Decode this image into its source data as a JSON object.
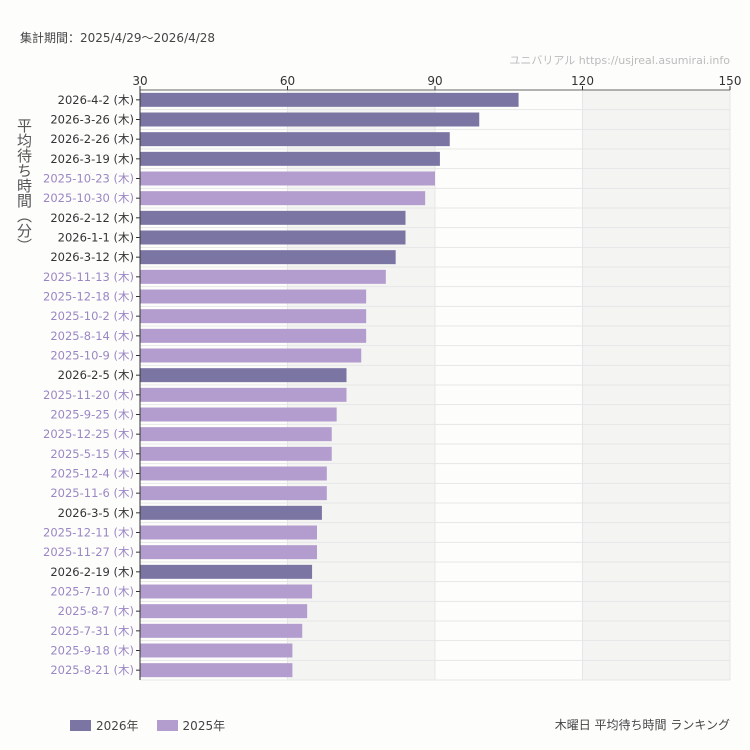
{
  "header": {
    "period": "集計期間：2025/4/29〜2026/4/28",
    "credit": "ユニバリアル  https://usjreal.asumirai.info"
  },
  "chart_data": {
    "type": "bar",
    "orientation": "horizontal",
    "title": "木曜日 平均待ち時間 ランキング",
    "ylabel": "平均待ち時間（分）",
    "xlim": [
      30,
      150
    ],
    "xticks": [
      "30",
      "60",
      "90",
      "120",
      "150"
    ],
    "grid": true,
    "legend_position": "bottom-left",
    "colors": {
      "2026年": "#7b75a3",
      "2025年": "#b39dce"
    },
    "legend": [
      {
        "name": "2026年",
        "color": "#7b75a3"
      },
      {
        "name": "2025年",
        "color": "#b39dce"
      }
    ],
    "categories": [
      "2026-4-2 (木)",
      "2026-3-26 (木)",
      "2026-2-26 (木)",
      "2026-3-19 (木)",
      "2025-10-23 (木)",
      "2025-10-30 (木)",
      "2026-2-12 (木)",
      "2026-1-1 (木)",
      "2026-3-12 (木)",
      "2025-11-13 (木)",
      "2025-12-18 (木)",
      "2025-10-2 (木)",
      "2025-8-14 (木)",
      "2025-10-9 (木)",
      "2026-2-5 (木)",
      "2025-11-20 (木)",
      "2025-9-25 (木)",
      "2025-12-25 (木)",
      "2025-5-15 (木)",
      "2025-12-4 (木)",
      "2025-11-6 (木)",
      "2026-3-5 (木)",
      "2025-12-11 (木)",
      "2025-11-27 (木)",
      "2026-2-19 (木)",
      "2025-7-10 (木)",
      "2025-8-7 (木)",
      "2025-7-31 (木)",
      "2025-9-18 (木)",
      "2025-8-21 (木)"
    ],
    "values": [
      107,
      99,
      93,
      91,
      90,
      88,
      84,
      84,
      82,
      80,
      76,
      76,
      76,
      75,
      72,
      72,
      70,
      69,
      69,
      68,
      68,
      67,
      66,
      66,
      65,
      65,
      64,
      63,
      61,
      61
    ],
    "series_of": [
      "2026年",
      "2026年",
      "2026年",
      "2026年",
      "2025年",
      "2025年",
      "2026年",
      "2026年",
      "2026年",
      "2025年",
      "2025年",
      "2025年",
      "2025年",
      "2025年",
      "2026年",
      "2025年",
      "2025年",
      "2025年",
      "2025年",
      "2025年",
      "2025年",
      "2026年",
      "2025年",
      "2025年",
      "2026年",
      "2025年",
      "2025年",
      "2025年",
      "2025年",
      "2025年"
    ]
  }
}
